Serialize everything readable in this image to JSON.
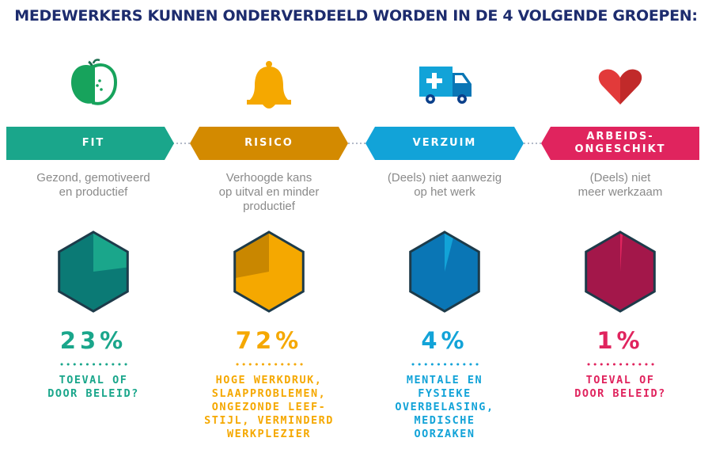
{
  "title": "MEDEWERKERS KUNNEN ONDERVERDEELD WORDEN IN DE 4 VOLGENDE GROEPEN:",
  "groups": [
    {
      "label": "FIT",
      "icon": "apple-icon",
      "color": "#1aa68b",
      "dark_color": "#0b7a75",
      "description": [
        "Gezond, gemotiveerd",
        "en productief"
      ],
      "percentage_text": "23%",
      "percentage": 23,
      "note": [
        "TOEVAL OF",
        "DOOR BELEID?"
      ]
    },
    {
      "label": "RISICO",
      "icon": "bell-icon",
      "color": "#f5a800",
      "dark_color": "#c98700",
      "description": [
        "Verhoogde kans",
        "op uitval en minder",
        "productief"
      ],
      "percentage_text": "72%",
      "percentage": 72,
      "note": [
        "HOGE WERKDRUK,",
        "SLAAPPROBLEMEN,",
        "ONGEZONDE LEEF-",
        "STIJL, VERMINDERD",
        "WERKPLEZIER"
      ]
    },
    {
      "label": "VERZUIM",
      "icon": "ambulance-icon",
      "color": "#12a3d8",
      "dark_color": "#0a76b5",
      "description": [
        "(Deels) niet aanwezig",
        "op het werk"
      ],
      "percentage_text": "4%",
      "percentage": 4,
      "note": [
        "MENTALE EN",
        "FYSIEKE",
        "OVERBELASING,",
        "MEDISCHE",
        "OORZAKEN"
      ]
    },
    {
      "label_lines": [
        "ARBEIDS-",
        "ONGESCHIKT"
      ],
      "icon": "heart-icon",
      "color": "#e0245e",
      "dark_color": "#a3174a",
      "description": [
        "(Deels) niet",
        "meer werkzaam"
      ],
      "percentage_text": "1%",
      "percentage": 1,
      "note": [
        "TOEVAL OF",
        "DOOR BELEID?"
      ]
    }
  ]
}
